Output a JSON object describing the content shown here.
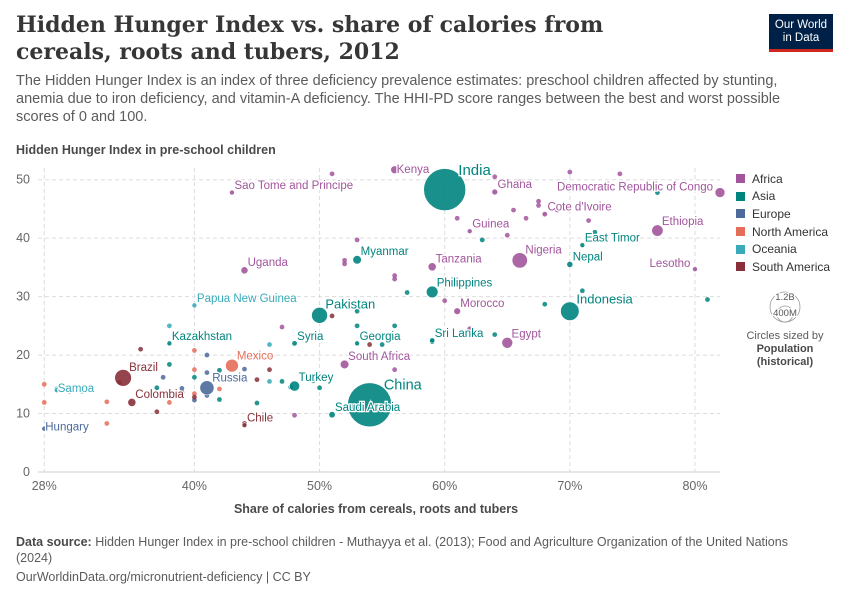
{
  "header": {
    "title": "Hidden Hunger Index vs. share of calories from cereals, roots and tubers, 2012",
    "subtitle": "The Hidden Hunger Index is an index of three deficiency prevalence estimates: preschool children affected by stunting, anemia due to iron deficiency, and vitamin-A deficiency. The HHI-PD score ranges between the best and worst possible scores of 0 and 100.",
    "logo_line1": "Our World",
    "logo_line2": "in Data"
  },
  "legend": {
    "items": [
      {
        "label": "Africa",
        "color": "#a2559c"
      },
      {
        "label": "Asia",
        "color": "#00847e"
      },
      {
        "label": "Europe",
        "color": "#4c6a9c"
      },
      {
        "label": "North America",
        "color": "#e56e5a"
      },
      {
        "label": "Oceania",
        "color": "#38aaba"
      },
      {
        "label": "South America",
        "color": "#883039"
      }
    ],
    "size_large": "1.2B",
    "size_small": "400M",
    "size_note1": "Circles sized by",
    "size_note2": "Population",
    "size_note3": "(historical)"
  },
  "chart_data": {
    "type": "scatter",
    "title": "Hidden Hunger Index vs. share of calories from cereals, roots and tubers, 2012",
    "xlabel": "Share of calories from cereals, roots and tubers",
    "ylabel": "Hidden Hunger Index in pre-school children",
    "xlim": [
      27.5,
      82
    ],
    "ylim": [
      0,
      52
    ],
    "xticks": [
      "28%",
      "40%",
      "50%",
      "60%",
      "70%",
      "80%"
    ],
    "xtick_values": [
      28,
      40,
      50,
      60,
      70,
      80
    ],
    "yticks": [
      0,
      10,
      20,
      30,
      40,
      50
    ],
    "grid": true,
    "legend_position": "right",
    "labeled_points": [
      {
        "name": "India",
        "x": 60,
        "y": 48.3,
        "pop": 1250,
        "region": "Asia"
      },
      {
        "name": "China",
        "x": 54,
        "y": 11.5,
        "pop": 1370,
        "region": "Asia"
      },
      {
        "name": "Indonesia",
        "x": 70,
        "y": 27.5,
        "pop": 245,
        "region": "Asia"
      },
      {
        "name": "Pakistan",
        "x": 50,
        "y": 26.8,
        "pop": 180,
        "region": "Asia"
      },
      {
        "name": "Nigeria",
        "x": 66,
        "y": 36.2,
        "pop": 168,
        "region": "Africa"
      },
      {
        "name": "Brazil",
        "x": 34.3,
        "y": 16.1,
        "pop": 200,
        "region": "South America"
      },
      {
        "name": "Mexico",
        "x": 43,
        "y": 18.2,
        "pop": 118,
        "region": "North America"
      },
      {
        "name": "Russia",
        "x": 41,
        "y": 14.4,
        "pop": 143,
        "region": "Europe"
      },
      {
        "name": "Philippines",
        "x": 59,
        "y": 30.8,
        "pop": 97,
        "region": "Asia"
      },
      {
        "name": "Ethiopia",
        "x": 77,
        "y": 41.3,
        "pop": 93,
        "region": "Africa"
      },
      {
        "name": "Democratic Republic of Congo",
        "x": 82,
        "y": 47.8,
        "pop": 70,
        "region": "Africa"
      },
      {
        "name": "Egypt",
        "x": 65,
        "y": 22.1,
        "pop": 85,
        "region": "Africa"
      },
      {
        "name": "Turkey",
        "x": 48,
        "y": 14.7,
        "pop": 75,
        "region": "Asia"
      },
      {
        "name": "Myanmar",
        "x": 53,
        "y": 36.3,
        "pop": 52,
        "region": "Asia"
      },
      {
        "name": "Tanzania",
        "x": 59,
        "y": 35.1,
        "pop": 48,
        "region": "Africa"
      },
      {
        "name": "South Africa",
        "x": 52,
        "y": 18.4,
        "pop": 53,
        "region": "Africa"
      },
      {
        "name": "Kenya",
        "x": 56,
        "y": 51.7,
        "pop": 44,
        "region": "Africa"
      },
      {
        "name": "Uganda",
        "x": 44,
        "y": 34.5,
        "pop": 36,
        "region": "Africa"
      },
      {
        "name": "Colombia",
        "x": 35,
        "y": 11.9,
        "pop": 47,
        "region": "South America"
      },
      {
        "name": "Saudi Arabia",
        "x": 51,
        "y": 9.8,
        "pop": 29,
        "region": "Asia"
      },
      {
        "name": "Nepal",
        "x": 70,
        "y": 35.5,
        "pop": 27,
        "region": "Asia"
      },
      {
        "name": "Ghana",
        "x": 64,
        "y": 47.9,
        "pop": 25,
        "region": "Africa"
      },
      {
        "name": "Morocco",
        "x": 61,
        "y": 27.5,
        "pop": 33,
        "region": "Africa"
      },
      {
        "name": "Sri Lanka",
        "x": 59,
        "y": 22.5,
        "pop": 20,
        "region": "Asia"
      },
      {
        "name": "Guinea",
        "x": 62,
        "y": 41.2,
        "pop": 11,
        "region": "Africa"
      },
      {
        "name": "Cote d'Ivoire",
        "x": 68,
        "y": 44.1,
        "pop": 21,
        "region": "Africa"
      },
      {
        "name": "East Timor",
        "x": 71,
        "y": 38.8,
        "pop": 1.1,
        "region": "Asia"
      },
      {
        "name": "Lesotho",
        "x": 80,
        "y": 34.7,
        "pop": 2,
        "region": "Africa"
      },
      {
        "name": "Papua New Guinea",
        "x": 40,
        "y": 28.5,
        "pop": 7.3,
        "region": "Oceania"
      },
      {
        "name": "Kazakhstan",
        "x": 38,
        "y": 22,
        "pop": 17,
        "region": "Asia"
      },
      {
        "name": "Syria",
        "x": 48,
        "y": 22,
        "pop": 21,
        "region": "Asia"
      },
      {
        "name": "Georgia",
        "x": 53,
        "y": 22,
        "pop": 4,
        "region": "Asia"
      },
      {
        "name": "Samoa",
        "x": 29,
        "y": 14,
        "pop": 0.19,
        "region": "Oceania"
      },
      {
        "name": "Hungary",
        "x": 28,
        "y": 7.4,
        "pop": 9.9,
        "region": "Europe"
      },
      {
        "name": "Chile",
        "x": 44,
        "y": 8,
        "pop": 17.5,
        "region": "South America"
      },
      {
        "name": "Sao Tome and Principe",
        "x": 43,
        "y": 47.8,
        "pop": 0.19,
        "region": "Africa"
      }
    ],
    "other_points": [
      {
        "x": 51,
        "y": 51,
        "region": "Africa"
      },
      {
        "x": 62,
        "y": 51.8,
        "region": "Africa"
      },
      {
        "x": 64,
        "y": 50.5,
        "region": "Africa"
      },
      {
        "x": 66,
        "y": 49.6,
        "region": "Africa"
      },
      {
        "x": 70,
        "y": 51.3,
        "region": "Africa"
      },
      {
        "x": 74,
        "y": 51,
        "region": "Africa"
      },
      {
        "x": 65.5,
        "y": 44.8,
        "region": "Africa"
      },
      {
        "x": 67.5,
        "y": 45.6,
        "region": "Africa"
      },
      {
        "x": 67.5,
        "y": 46.3,
        "region": "Africa"
      },
      {
        "x": 69,
        "y": 44.8,
        "region": "Africa"
      },
      {
        "x": 71.5,
        "y": 43,
        "region": "Africa"
      },
      {
        "x": 61,
        "y": 43.4,
        "region": "Africa"
      },
      {
        "x": 66.5,
        "y": 43.4,
        "region": "Africa"
      },
      {
        "x": 65,
        "y": 40.5,
        "region": "Africa"
      },
      {
        "x": 53,
        "y": 39.7,
        "region": "Africa"
      },
      {
        "x": 52,
        "y": 36.2,
        "region": "Africa"
      },
      {
        "x": 52,
        "y": 35.6,
        "region": "Africa"
      },
      {
        "x": 56,
        "y": 33.6,
        "region": "Africa"
      },
      {
        "x": 56,
        "y": 33,
        "region": "Africa"
      },
      {
        "x": 60,
        "y": 29.3,
        "region": "Africa"
      },
      {
        "x": 56,
        "y": 17.5,
        "region": "Africa"
      },
      {
        "x": 47,
        "y": 24.8,
        "region": "Africa"
      },
      {
        "x": 48,
        "y": 9.7,
        "region": "Africa"
      },
      {
        "x": 62,
        "y": 24.5,
        "region": "Africa"
      },
      {
        "x": 63,
        "y": 39.7,
        "region": "Asia"
      },
      {
        "x": 72,
        "y": 41,
        "region": "Asia"
      },
      {
        "x": 77,
        "y": 47.8,
        "region": "Asia"
      },
      {
        "x": 57,
        "y": 30.7,
        "region": "Asia"
      },
      {
        "x": 68,
        "y": 28.7,
        "region": "Asia"
      },
      {
        "x": 71,
        "y": 31,
        "region": "Asia"
      },
      {
        "x": 81,
        "y": 29.5,
        "region": "Asia"
      },
      {
        "x": 53,
        "y": 25,
        "region": "Asia"
      },
      {
        "x": 56,
        "y": 25,
        "region": "Asia"
      },
      {
        "x": 55,
        "y": 21.8,
        "region": "Asia"
      },
      {
        "x": 59,
        "y": 22.3,
        "region": "Asia"
      },
      {
        "x": 64,
        "y": 23.5,
        "region": "Asia"
      },
      {
        "x": 47,
        "y": 15.5,
        "region": "Asia"
      },
      {
        "x": 49.5,
        "y": 15.6,
        "region": "Asia"
      },
      {
        "x": 50,
        "y": 14.4,
        "region": "Asia"
      },
      {
        "x": 47.7,
        "y": 14.5,
        "region": "Asia"
      },
      {
        "x": 45,
        "y": 11.8,
        "region": "Asia"
      },
      {
        "x": 37,
        "y": 14.4,
        "region": "Asia"
      },
      {
        "x": 38,
        "y": 18.4,
        "region": "Asia"
      },
      {
        "x": 42,
        "y": 12.4,
        "region": "Asia"
      },
      {
        "x": 42,
        "y": 17.4,
        "region": "Asia"
      },
      {
        "x": 40,
        "y": 16.2,
        "region": "Asia"
      },
      {
        "x": 53,
        "y": 27.5,
        "region": "Asia"
      },
      {
        "x": 37.5,
        "y": 16.2,
        "region": "Europe"
      },
      {
        "x": 39,
        "y": 14.3,
        "region": "Europe"
      },
      {
        "x": 41,
        "y": 20,
        "region": "Europe"
      },
      {
        "x": 41,
        "y": 13.1,
        "region": "Europe"
      },
      {
        "x": 44,
        "y": 17.6,
        "region": "Europe"
      },
      {
        "x": 40,
        "y": 12.3,
        "region": "Europe"
      },
      {
        "x": 41,
        "y": 17,
        "region": "Europe"
      },
      {
        "x": 39,
        "y": 13.6,
        "region": "Europe"
      },
      {
        "x": 28,
        "y": 15,
        "region": "North America"
      },
      {
        "x": 28,
        "y": 11.9,
        "region": "North America"
      },
      {
        "x": 30,
        "y": 13.8,
        "region": "North America"
      },
      {
        "x": 33,
        "y": 8.3,
        "region": "North America"
      },
      {
        "x": 38,
        "y": 11.9,
        "region": "North America"
      },
      {
        "x": 40,
        "y": 20.8,
        "region": "North America"
      },
      {
        "x": 40,
        "y": 17.5,
        "region": "North America"
      },
      {
        "x": 40,
        "y": 13.4,
        "region": "North America"
      },
      {
        "x": 42,
        "y": 14.2,
        "region": "North America"
      },
      {
        "x": 46,
        "y": 19.6,
        "region": "North America"
      },
      {
        "x": 33,
        "y": 12,
        "region": "North America"
      },
      {
        "x": 29,
        "y": 14.2,
        "region": "Oceania"
      },
      {
        "x": 38,
        "y": 25,
        "region": "Oceania"
      },
      {
        "x": 46,
        "y": 15.5,
        "region": "Oceania"
      },
      {
        "x": 46,
        "y": 21.8,
        "region": "Oceania"
      },
      {
        "x": 31,
        "y": 13.8,
        "region": "Oceania"
      },
      {
        "x": 35.7,
        "y": 21,
        "region": "South America"
      },
      {
        "x": 45,
        "y": 15.8,
        "region": "South America"
      },
      {
        "x": 51,
        "y": 26.7,
        "region": "South America"
      },
      {
        "x": 54,
        "y": 21.8,
        "region": "South America"
      },
      {
        "x": 44,
        "y": 8.3,
        "region": "South America"
      },
      {
        "x": 40,
        "y": 12.8,
        "region": "South America"
      },
      {
        "x": 37,
        "y": 10.3,
        "region": "South America"
      },
      {
        "x": 34,
        "y": 15.3,
        "region": "South America"
      },
      {
        "x": 46,
        "y": 17.5,
        "region": "South America"
      }
    ]
  },
  "axis": {
    "xlabel": "Share of calories from cereals, roots and tubers",
    "ylabel": "Hidden Hunger Index in pre-school children"
  },
  "footer": {
    "source_label": "Data source:",
    "source_text": " Hidden Hunger Index in pre-school children - Muthayya et al. (2013); Food and Agriculture Organization of the United Nations (2024)",
    "credit": "OurWorldinData.org/micronutrient-deficiency | CC BY"
  }
}
